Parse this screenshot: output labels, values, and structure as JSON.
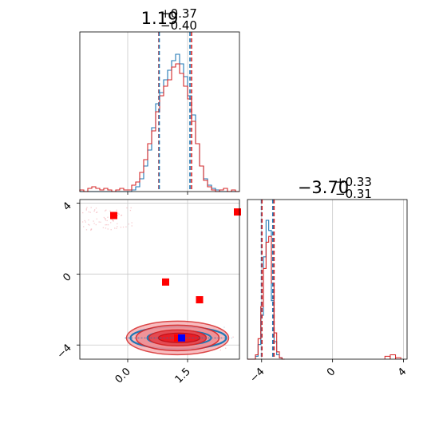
{
  "chart_data": [
    {
      "type": "histogram",
      "panel": "marginal-param-1",
      "title": {
        "value": "1.19",
        "sup": "+0.37",
        "sub": "−0.40"
      },
      "xlim": [
        -1.2,
        2.8
      ],
      "grid": true,
      "series": [
        {
          "color": "#1f77b4",
          "median": 1.19,
          "q_low": 0.79,
          "q_high": 1.56,
          "bins": [
            -1.2,
            -1.1,
            -1.0,
            -0.9,
            -0.8,
            -0.7,
            -0.6,
            -0.5,
            -0.4,
            -0.3,
            -0.2,
            -0.1,
            0.0,
            0.1,
            0.2,
            0.3,
            0.4,
            0.5,
            0.6,
            0.7,
            0.8,
            0.9,
            1.0,
            1.1,
            1.2,
            1.3,
            1.4,
            1.5,
            1.6,
            1.7,
            1.8,
            1.9,
            2.0,
            2.1,
            2.2,
            2.3,
            2.4,
            2.5,
            2.6,
            2.7,
            2.8
          ],
          "counts": [
            0,
            0,
            0,
            0,
            0,
            0,
            0,
            0,
            0,
            0,
            0,
            0,
            0,
            1,
            3,
            8,
            16,
            26,
            40,
            55,
            62,
            70,
            76,
            82,
            86,
            80,
            72,
            60,
            48,
            30,
            16,
            8,
            4,
            2,
            1,
            0,
            0,
            0,
            0,
            0
          ]
        },
        {
          "color": "#d62728",
          "median": 1.19,
          "q_low": 0.78,
          "q_high": 1.6,
          "bins": [
            -1.2,
            -1.1,
            -1.0,
            -0.9,
            -0.8,
            -0.7,
            -0.6,
            -0.5,
            -0.4,
            -0.3,
            -0.2,
            -0.1,
            0.0,
            0.1,
            0.2,
            0.3,
            0.4,
            0.5,
            0.6,
            0.7,
            0.8,
            0.9,
            1.0,
            1.1,
            1.2,
            1.3,
            1.4,
            1.5,
            1.6,
            1.7,
            1.8,
            1.9,
            2.0,
            2.1,
            2.2,
            2.3,
            2.4,
            2.5,
            2.6,
            2.7,
            2.8
          ],
          "counts": [
            1,
            0,
            2,
            3,
            2,
            1,
            2,
            1,
            0,
            1,
            2,
            1,
            1,
            4,
            6,
            12,
            20,
            30,
            38,
            50,
            60,
            66,
            70,
            78,
            80,
            74,
            66,
            58,
            44,
            30,
            16,
            7,
            3,
            1,
            0,
            1,
            2,
            0,
            1,
            0
          ]
        }
      ],
      "quantile_lines": {
        "blue": [
          0.79,
          1.56
        ],
        "red": [
          0.78,
          1.6
        ]
      }
    },
    {
      "type": "contour-scatter",
      "panel": "joint",
      "xlim": [
        -1.2,
        2.8
      ],
      "ylim": [
        -4.8,
        4.2
      ],
      "x_ticks": [
        "0.0",
        "1.5"
      ],
      "x_tick_values": [
        0.0,
        1.5
      ],
      "y_ticks": [
        "−4",
        "0",
        "4"
      ],
      "y_tick_values": [
        -4,
        0,
        4
      ],
      "grid": true,
      "contour_center": [
        1.25,
        -3.6
      ],
      "markers_red": [
        [
          -0.35,
          3.3
        ],
        [
          2.75,
          3.5
        ],
        [
          0.95,
          -0.45
        ],
        [
          1.8,
          -1.45
        ],
        [
          1.25,
          -3.6
        ]
      ],
      "marker_blue": [
        1.35,
        -3.6
      ]
    },
    {
      "type": "histogram",
      "panel": "marginal-param-2",
      "title": {
        "value": "−3.70",
        "sup": "+0.33",
        "sub": "−0.31"
      },
      "xlim": [
        -4.8,
        4.2
      ],
      "x_ticks": [
        "−4",
        "0",
        "4"
      ],
      "x_tick_values": [
        -4,
        0,
        4
      ],
      "grid": true,
      "series": [
        {
          "color": "#1f77b4",
          "median": -3.7,
          "q_low": -4.01,
          "q_high": -3.37,
          "bins": [
            -4.8,
            -4.65,
            -4.5,
            -4.35,
            -4.2,
            -4.05,
            -3.9,
            -3.75,
            -3.6,
            -3.45,
            -3.3,
            -3.15,
            -3.0,
            -2.85,
            -2.7
          ],
          "counts": [
            0,
            0,
            0,
            2,
            10,
            30,
            70,
            95,
            88,
            40,
            12,
            3,
            1,
            0
          ]
        },
        {
          "color": "#d62728",
          "median": -3.7,
          "q_low": -3.98,
          "q_high": -3.3,
          "bins": [
            -4.8,
            -4.65,
            -4.5,
            -4.35,
            -4.2,
            -4.05,
            -3.9,
            -3.75,
            -3.6,
            -3.45,
            -3.3,
            -3.15,
            -3.0,
            -2.85,
            -2.7
          ],
          "counts": [
            0,
            0,
            0,
            3,
            14,
            36,
            62,
            80,
            84,
            52,
            18,
            5,
            1,
            0
          ]
        }
      ],
      "tail_red": [
        [
          3.1,
          2
        ],
        [
          3.4,
          3
        ],
        [
          3.7,
          1
        ]
      ],
      "quantile_lines": {
        "blue": [
          -4.01,
          -3.37
        ],
        "red": [
          -3.98,
          -3.3
        ]
      }
    }
  ]
}
